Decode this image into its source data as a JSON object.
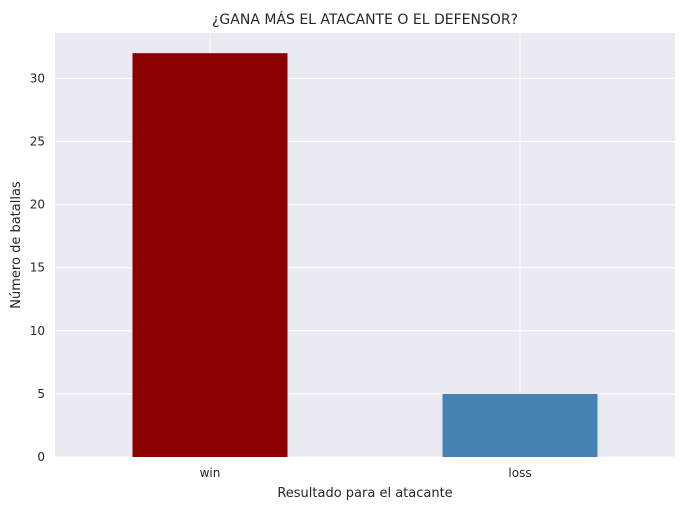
{
  "chart_data": {
    "type": "bar",
    "title": "¿GANA MÁS EL ATACANTE O EL DEFENSOR?",
    "xlabel": "Resultado para el atacante",
    "ylabel": "Número de batallas",
    "categories": [
      "win",
      "loss"
    ],
    "values": [
      32,
      5
    ],
    "colors": [
      "#8b0000",
      "#4682b4"
    ],
    "ylim": [
      0,
      33.6
    ],
    "yticks": [
      0,
      5,
      10,
      15,
      20,
      25,
      30
    ],
    "grid": true,
    "legend": "none",
    "background": "#eaeaf2",
    "grid_color": "#ffffff"
  }
}
